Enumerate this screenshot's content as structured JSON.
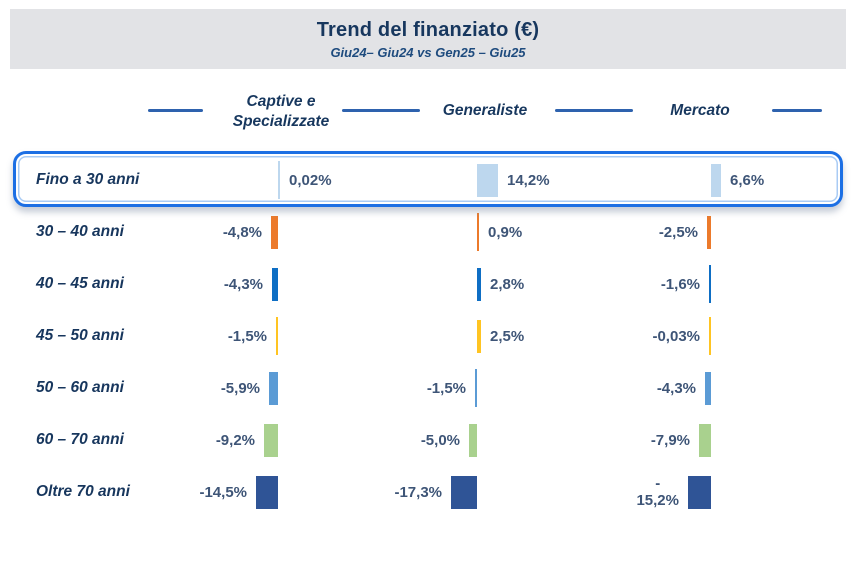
{
  "chart_data": {
    "type": "bar",
    "title": "Trend del finanziato (€)",
    "subtitle": "Giu24– Giu24 vs Gen25 – Giu25",
    "unit": "%",
    "legend": "none",
    "axes": "none",
    "highlighted_category": "Fino a 30 anni",
    "categories": [
      "Fino a 30 anni",
      "30 – 40 anni",
      "40 – 45 anni",
      "45 – 50 anni",
      "50 – 60 anni",
      "60 – 70 anni",
      "Oltre 70 anni"
    ],
    "series": [
      {
        "name": "Captive e Specializzate",
        "values": [
          0.02,
          -4.8,
          -4.3,
          -1.5,
          -5.9,
          -9.2,
          -14.5
        ],
        "labels": [
          "0,02%",
          "-4,8%",
          "-4,3%",
          "-1,5%",
          "-5,9%",
          "-9,2%",
          "-14,5%"
        ]
      },
      {
        "name": "Generaliste",
        "values": [
          14.2,
          0.9,
          2.8,
          2.5,
          -1.5,
          -5.0,
          -17.3
        ],
        "labels": [
          "14,2%",
          "0,9%",
          "2,8%",
          "2,5%",
          "-1,5%",
          "-5,0%",
          "-17,3%"
        ]
      },
      {
        "name": "Mercato",
        "values": [
          6.6,
          -2.5,
          -1.6,
          -0.03,
          -4.3,
          -7.9,
          -15.2
        ],
        "labels": [
          "6,6%",
          "-2,5%",
          "-1,6%",
          "-0,03%",
          "-4,3%",
          "-7,9%",
          "-\n15,2%"
        ]
      }
    ],
    "row_colors": [
      "#BDD7EE",
      "#EC7A2B",
      "#0E6EC4",
      "#FFC422",
      "#5B9BD5",
      "#A9D18E",
      "#2F5496"
    ]
  },
  "theme": {
    "band_bg": "#E2E3E6",
    "navy_text": "#17375E",
    "value_text": "#3E5577",
    "rule_color": "#2E62AE",
    "highlight_border": "#1C6FE4"
  }
}
